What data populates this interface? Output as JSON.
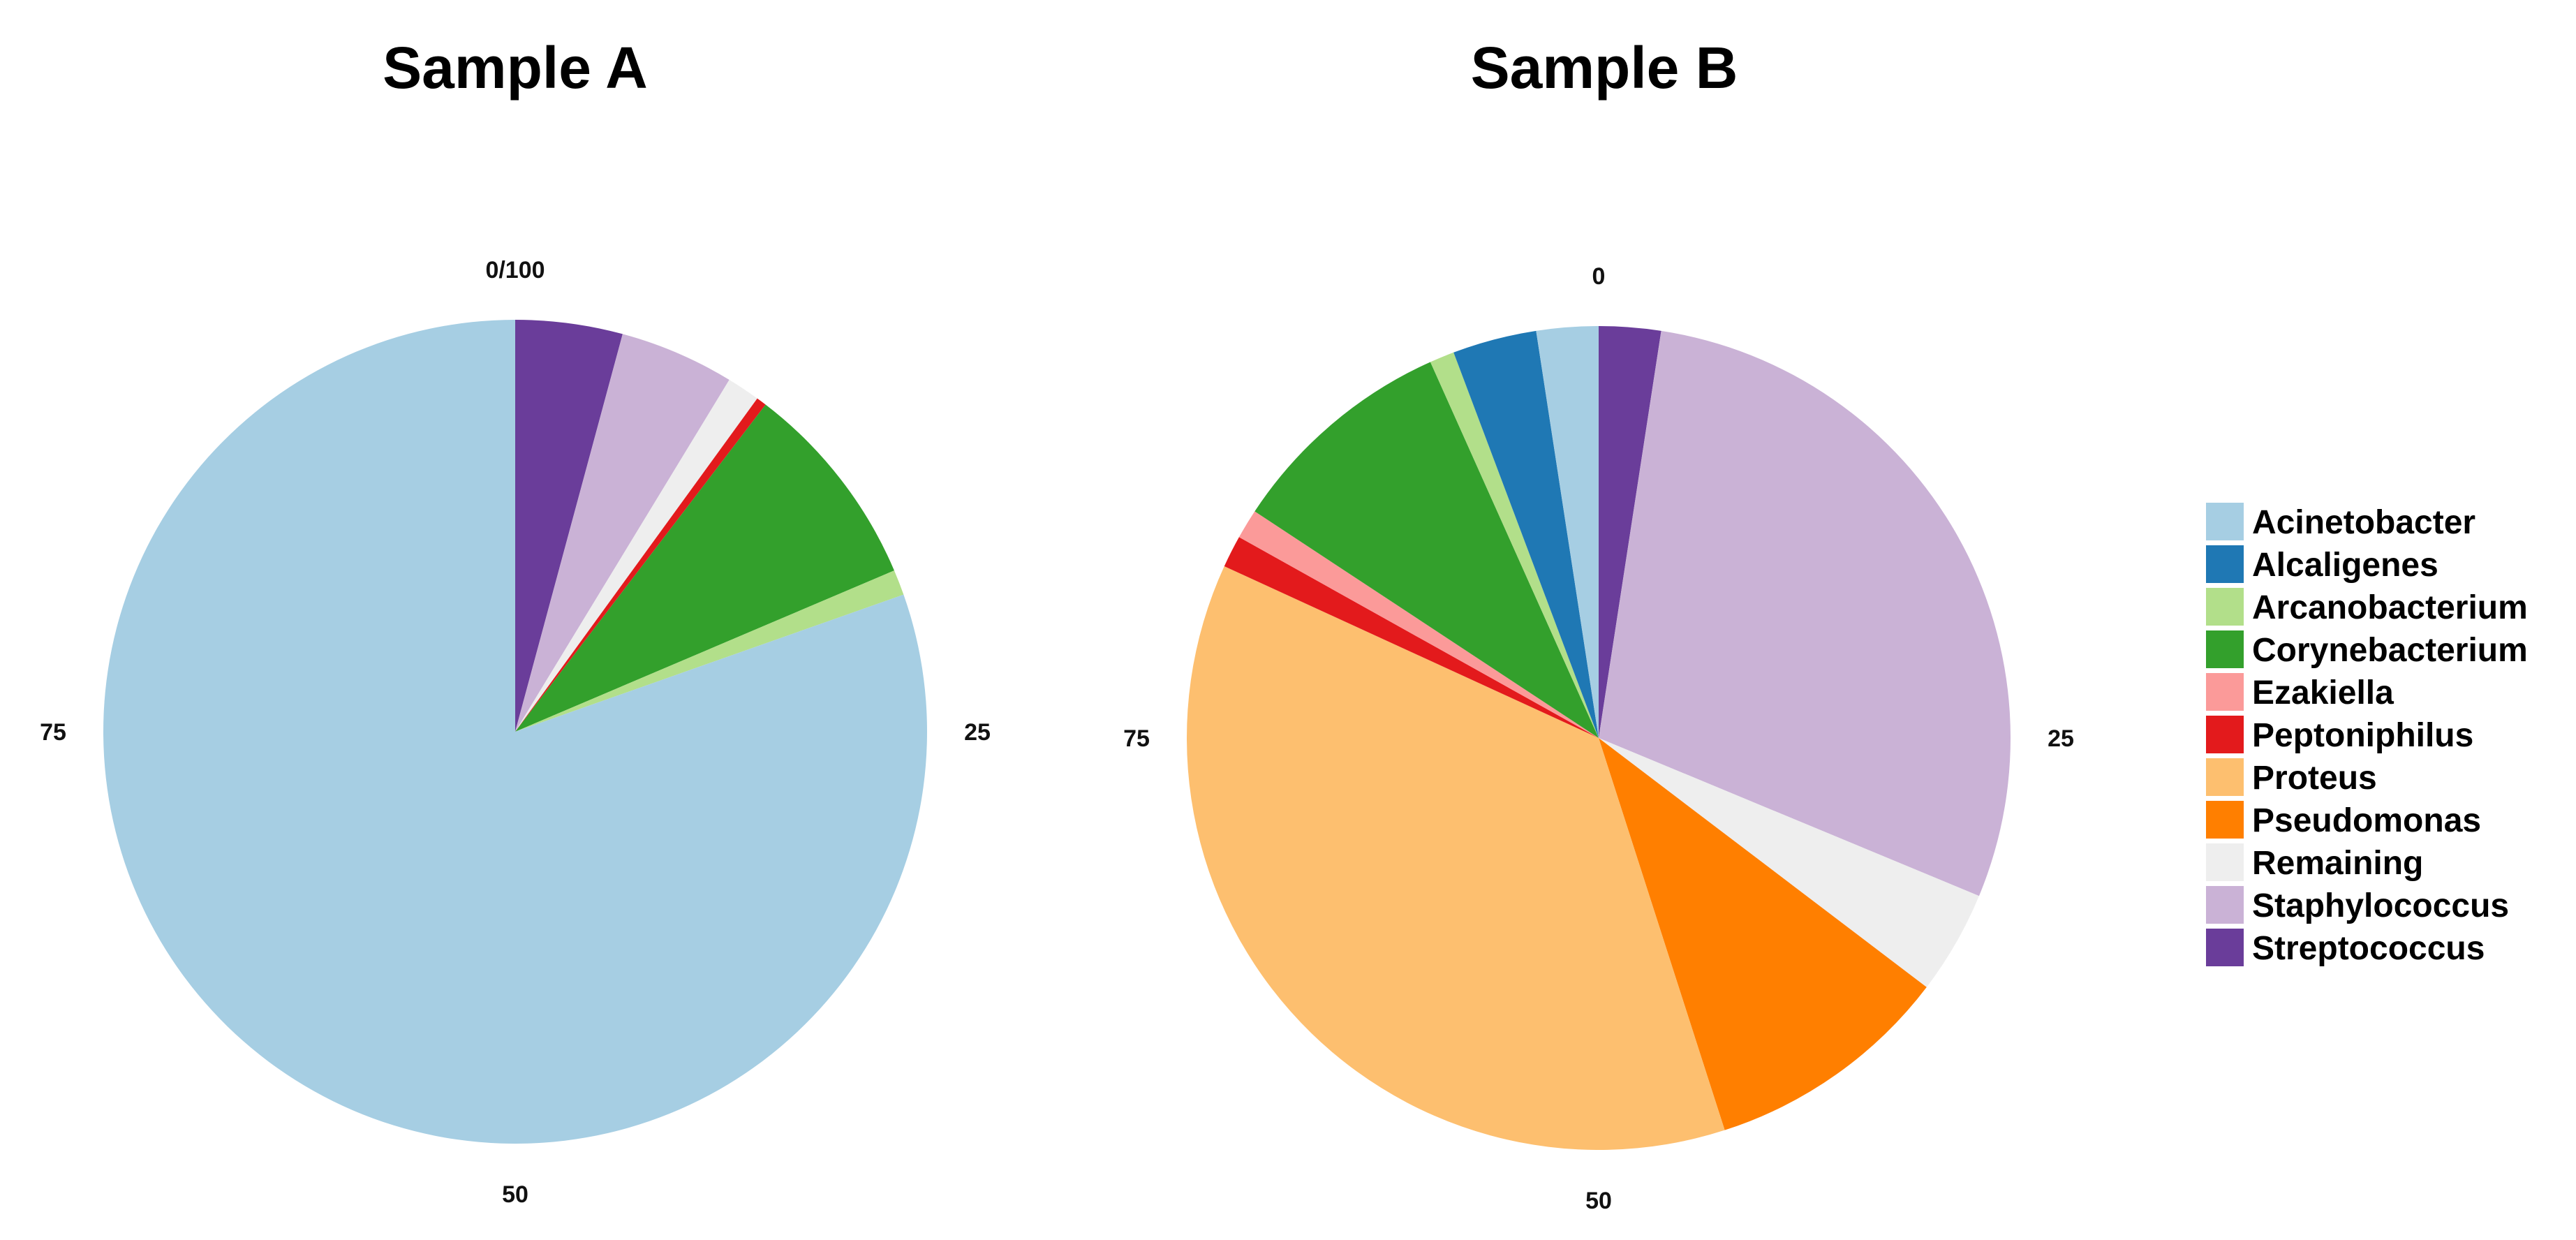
{
  "chart_data": [
    {
      "type": "pie",
      "title": "Sample A",
      "start_angle_label": "0/100",
      "direction": "clockwise",
      "tick_labels": [
        "0/100",
        "25",
        "50",
        "75"
      ],
      "slices": [
        {
          "label": "Streptococcus",
          "value": 4.2
        },
        {
          "label": "Staphylococcus",
          "value": 4.5
        },
        {
          "label": "Remaining",
          "value": 1.3
        },
        {
          "label": "Peptoniphilus",
          "value": 0.4
        },
        {
          "label": "Corynebacterium",
          "value": 8.2
        },
        {
          "label": "Arcanobacterium",
          "value": 1.0
        },
        {
          "label": "Acinetobacter",
          "value": 80.4
        }
      ]
    },
    {
      "type": "pie",
      "title": "Sample B",
      "start_angle_label": "0",
      "direction": "clockwise",
      "tick_labels": [
        "0",
        "25",
        "50",
        "75"
      ],
      "slices": [
        {
          "label": "Streptococcus",
          "value": 2.5
        },
        {
          "label": "Staphylococcus",
          "value": 29.7
        },
        {
          "label": "Remaining",
          "value": 4.2
        },
        {
          "label": "Pseudomonas",
          "value": 10.0
        },
        {
          "label": "Proteus",
          "value": 37.9
        },
        {
          "label": "Peptoniphilus",
          "value": 1.3
        },
        {
          "label": "Ezakiella",
          "value": 1.2
        },
        {
          "label": "Corynebacterium",
          "value": 9.3
        },
        {
          "label": "Arcanobacterium",
          "value": 1.0
        },
        {
          "label": "Alcaligenes",
          "value": 3.4
        },
        {
          "label": "Acinetobacter",
          "value": 2.5
        }
      ]
    }
  ],
  "legend": {
    "placement": "right",
    "items": [
      {
        "label": "Acinetobacter",
        "color": "#a6cee3"
      },
      {
        "label": "Alcaligenes",
        "color": "#1f78b4"
      },
      {
        "label": "Arcanobacterium",
        "color": "#b2df8a"
      },
      {
        "label": "Corynebacterium",
        "color": "#33a02c"
      },
      {
        "label": "Ezakiella",
        "color": "#fb9a99"
      },
      {
        "label": "Peptoniphilus",
        "color": "#e31a1c"
      },
      {
        "label": "Proteus",
        "color": "#fdbf6f"
      },
      {
        "label": "Pseudomonas",
        "color": "#ff7f00"
      },
      {
        "label": "Remaining",
        "color": "#eeeeee"
      },
      {
        "label": "Staphylococcus",
        "color": "#cab2d6"
      },
      {
        "label": "Streptococcus",
        "color": "#6a3d9a"
      }
    ]
  }
}
